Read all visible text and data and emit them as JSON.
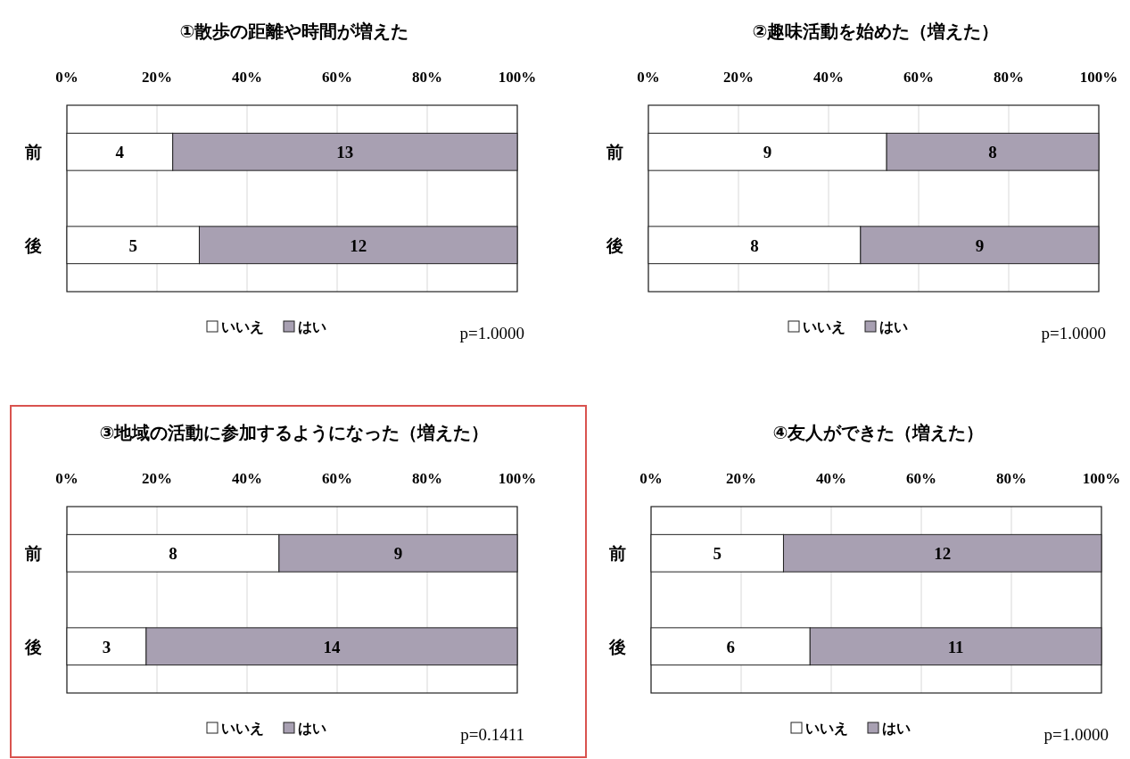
{
  "chart_data": [
    {
      "type": "bar",
      "orientation": "horizontal",
      "stacked": true,
      "title": "①散歩の距離や時間が増えた",
      "categories": [
        "前",
        "後"
      ],
      "series": [
        {
          "name": "いいえ",
          "color": "#ffffff",
          "values": [
            23.5,
            29.4
          ]
        },
        {
          "name": "はい",
          "color": "#a8a0b2",
          "values": [
            76.5,
            70.6
          ]
        }
      ],
      "xlim": [
        0,
        100
      ],
      "xticks": [
        {
          "value": 0,
          "label": "0%"
        },
        {
          "value": 20,
          "label": "20%"
        },
        {
          "value": 40,
          "label": "40%"
        },
        {
          "value": 60,
          "label": "60%"
        },
        {
          "value": 80,
          "label": "80%"
        },
        {
          "value": 100,
          "label": "100%"
        }
      ],
      "grid": "x",
      "legend": "bottom",
      "annotations": [
        "4",
        "5",
        "13",
        "12",
        "p=1.0000"
      ]
    },
    {
      "type": "bar",
      "orientation": "horizontal",
      "stacked": true,
      "title": "②趣味活動を始めた（増えた）",
      "categories": [
        "前",
        "後"
      ],
      "series": [
        {
          "name": "いいえ",
          "color": "#ffffff",
          "values": [
            52.9,
            47.1
          ]
        },
        {
          "name": "はい",
          "color": "#a8a0b2",
          "values": [
            47.1,
            52.9
          ]
        }
      ],
      "xlim": [
        0,
        100
      ],
      "xticks": [
        {
          "value": 0,
          "label": "0%"
        },
        {
          "value": 20,
          "label": "20%"
        },
        {
          "value": 40,
          "label": "40%"
        },
        {
          "value": 60,
          "label": "60%"
        },
        {
          "value": 80,
          "label": "80%"
        },
        {
          "value": 100,
          "label": "100%"
        }
      ],
      "grid": "x",
      "legend": "bottom",
      "annotations": [
        "9",
        "8",
        "8",
        "9",
        "p=1.0000"
      ]
    },
    {
      "type": "bar",
      "orientation": "horizontal",
      "stacked": true,
      "title": "③地域の活動に参加するようになった（増えた）",
      "categories": [
        "前",
        "後"
      ],
      "series": [
        {
          "name": "いいえ",
          "color": "#ffffff",
          "values": [
            47.1,
            17.6
          ]
        },
        {
          "name": "はい",
          "color": "#a8a0b2",
          "values": [
            52.9,
            82.4
          ]
        }
      ],
      "xlim": [
        0,
        100
      ],
      "xticks": [
        {
          "value": 0,
          "label": "0%"
        },
        {
          "value": 20,
          "label": "20%"
        },
        {
          "value": 40,
          "label": "40%"
        },
        {
          "value": 60,
          "label": "60%"
        },
        {
          "value": 80,
          "label": "80%"
        },
        {
          "value": 100,
          "label": "100%"
        }
      ],
      "grid": "x",
      "legend": "bottom",
      "annotations": [
        "8",
        "3",
        "9",
        "14",
        "p=0.1411"
      ]
    },
    {
      "type": "bar",
      "orientation": "horizontal",
      "stacked": true,
      "title": "④友人ができた（増えた）",
      "categories": [
        "前",
        "後"
      ],
      "series": [
        {
          "name": "いいえ",
          "color": "#ffffff",
          "values": [
            29.4,
            35.3
          ]
        },
        {
          "name": "はい",
          "color": "#a8a0b2",
          "values": [
            70.6,
            64.7
          ]
        }
      ],
      "xlim": [
        0,
        100
      ],
      "xticks": [
        {
          "value": 0,
          "label": "0%"
        },
        {
          "value": 20,
          "label": "20%"
        },
        {
          "value": 40,
          "label": "40%"
        },
        {
          "value": 60,
          "label": "60%"
        },
        {
          "value": 80,
          "label": "80%"
        },
        {
          "value": 100,
          "label": "100%"
        }
      ],
      "grid": "x",
      "legend": "bottom",
      "annotations": [
        "5",
        "6",
        "12",
        "11",
        "p=1.0000"
      ]
    }
  ]
}
